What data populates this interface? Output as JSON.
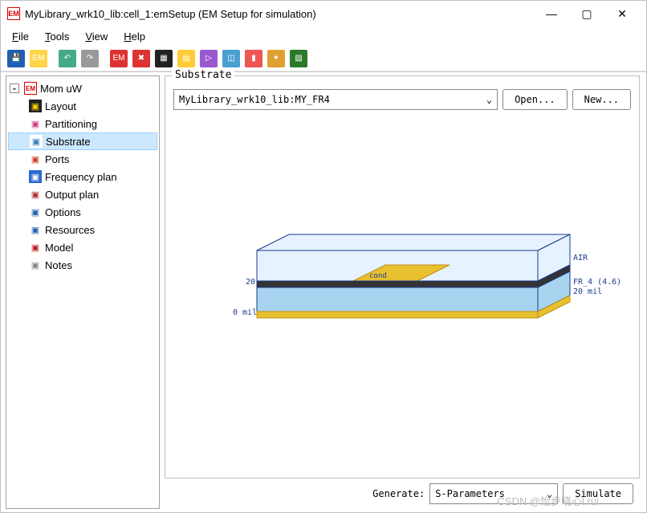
{
  "window": {
    "title": "MyLibrary_wrk10_lib:cell_1:emSetup (EM Setup for simulation)"
  },
  "menu": {
    "items": [
      "File",
      "Tools",
      "View",
      "Help"
    ]
  },
  "toolbar": {
    "icons": [
      {
        "name": "save-icon",
        "bg": "#1e5fb4",
        "glyph": "💾"
      },
      {
        "name": "export-icon",
        "bg": "#ffd54a",
        "glyph": "EM"
      },
      {
        "name": "undo-icon",
        "bg": "#4a8",
        "glyph": "↶"
      },
      {
        "name": "redo-icon",
        "bg": "#999",
        "glyph": "↷"
      },
      {
        "name": "em-red-icon",
        "bg": "#d33",
        "glyph": "EM"
      },
      {
        "name": "em-cross-icon",
        "bg": "#d33",
        "glyph": "✖"
      },
      {
        "name": "layout-icon",
        "bg": "#222",
        "glyph": "▦"
      },
      {
        "name": "spectrum-icon",
        "bg": "#fc3",
        "glyph": "▤"
      },
      {
        "name": "play-icon",
        "bg": "#9b59d0",
        "glyph": "▷"
      },
      {
        "name": "cube-icon",
        "bg": "#4aa0d0",
        "glyph": "◫"
      },
      {
        "name": "rainbow-icon",
        "bg": "#e55",
        "glyph": "▮"
      },
      {
        "name": "bug-icon",
        "bg": "#e0a030",
        "glyph": "✦"
      },
      {
        "name": "mesh-icon",
        "bg": "#2a7a2a",
        "glyph": "▨"
      }
    ]
  },
  "tree": {
    "root": {
      "label": "Mom uW",
      "icon_text": "EM",
      "icon_bg": "#ffffff",
      "icon_border": "#d00",
      "icon_color": "#d00"
    },
    "children": [
      {
        "label": "Layout",
        "icon_bg": "#222",
        "icon_color": "#fc0",
        "selected": false
      },
      {
        "label": "Partitioning",
        "icon_bg": "#ffffff",
        "icon_color": "#d04080",
        "selected": false
      },
      {
        "label": "Substrate",
        "icon_bg": "#ffffff",
        "icon_color": "#3a7fb8",
        "selected": true
      },
      {
        "label": "Ports",
        "icon_bg": "#ffffff",
        "icon_color": "#d04030",
        "selected": false
      },
      {
        "label": "Frequency plan",
        "icon_bg": "#2a6ad0",
        "icon_color": "#ffffff",
        "selected": false
      },
      {
        "label": "Output plan",
        "icon_bg": "#ffffff",
        "icon_color": "#b03030",
        "selected": false
      },
      {
        "label": "Options",
        "icon_bg": "#ffffff",
        "icon_color": "#2060b0",
        "selected": false
      },
      {
        "label": "Resources",
        "icon_bg": "#ffffff",
        "icon_color": "#2060b0",
        "selected": false
      },
      {
        "label": "Model",
        "icon_bg": "#ffffff",
        "icon_color": "#c02020",
        "selected": false
      },
      {
        "label": "Notes",
        "icon_bg": "#ffffff",
        "icon_color": "#888",
        "selected": false
      }
    ]
  },
  "substrate_panel": {
    "legend": "Substrate",
    "combo_value": "MyLibrary_wrk10_lib:MY_FR4",
    "open_label": "Open...",
    "new_label": "New..."
  },
  "diagram": {
    "labels": {
      "air": "AIR",
      "fr4": "FR_4 (4.6)",
      "thickness": "20 mil",
      "bottom": "0 mil",
      "top_num": "20",
      "cond": "cond"
    },
    "colors": {
      "air_fill": "#e6f2ff",
      "fr4_fill": "#a8d4f0",
      "stroke": "#1a3a8a",
      "gold": "#e8c030",
      "gold_dark": "#c09010",
      "text": "#1a3a8a"
    }
  },
  "bottom": {
    "generate_label": "Generate:",
    "generate_value": "S-Parameters",
    "simulate_label": "Simulate"
  },
  "watermark": "CSDN @怡步晓心l.rui"
}
